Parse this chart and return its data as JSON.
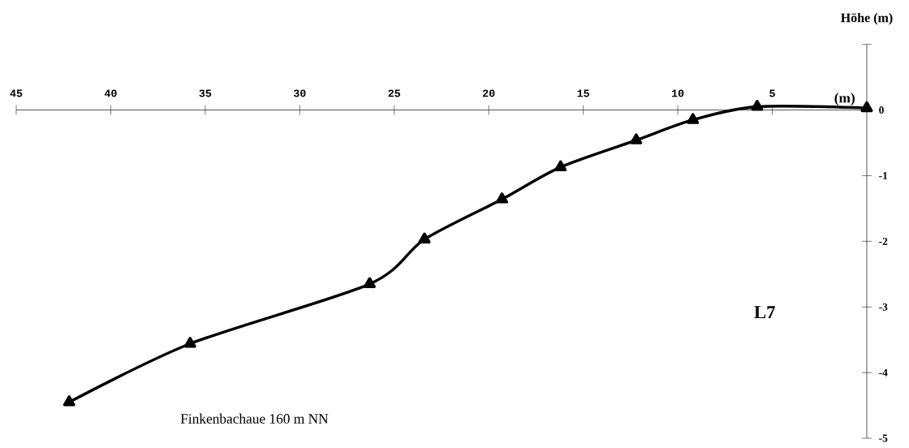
{
  "chart_data": {
    "type": "line",
    "xlabel": "(m)",
    "ylabel": "Höhe (m)",
    "annotations": [
      "L7",
      "Finkenbachaue 160 m NN"
    ],
    "x": [
      42.2,
      35.8,
      26.3,
      23.4,
      19.3,
      16.2,
      12.2,
      9.2,
      5.8,
      0
    ],
    "values": [
      -4.45,
      -3.56,
      -2.65,
      -1.97,
      -1.36,
      -0.87,
      -0.46,
      -0.15,
      0.05,
      0.03
    ],
    "color": "#000000",
    "xlim": [
      45,
      0
    ],
    "ylim": [
      -5,
      1
    ],
    "xticks": [
      45,
      40,
      35,
      30,
      25,
      20,
      15,
      10,
      5
    ],
    "yticks": [
      {
        "value": 1,
        "label": null
      },
      0,
      -1,
      -2,
      -3,
      -4,
      -5
    ],
    "marker": "triangle",
    "line_style": "solid"
  }
}
